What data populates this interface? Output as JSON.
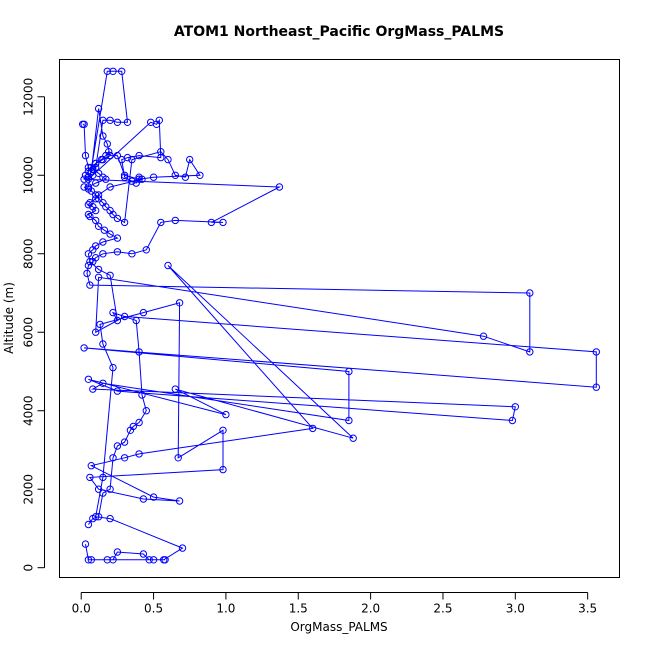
{
  "chart_data": {
    "type": "line",
    "title": "ATOM1 Northeast_Pacific OrgMass_PALMS",
    "xlabel": "OrgMass_PALMS",
    "ylabel": "Altitude (m)",
    "xlim": [
      -0.15,
      3.72
    ],
    "ylim": [
      -250,
      12950
    ],
    "xticks": [
      0.0,
      0.5,
      1.0,
      1.5,
      2.0,
      2.5,
      3.0,
      3.5
    ],
    "xtick_labels": [
      "0.0",
      "0.5",
      "1.0",
      "1.5",
      "2.0",
      "2.5",
      "3.0",
      "3.5"
    ],
    "yticks": [
      0,
      2000,
      4000,
      6000,
      8000,
      10000,
      12000
    ],
    "ytick_labels": [
      "0",
      "2000",
      "4000",
      "6000",
      "8000",
      "10000",
      "12000"
    ],
    "grid": false,
    "series_color": "#0000ff",
    "series": [
      {
        "marker": "open-circle",
        "x": [
          0.02,
          0.05,
          0.07,
          0.1,
          0.12,
          0.15,
          0.17,
          0.2,
          0.22,
          0.25,
          0.3,
          0.35,
          0.55,
          0.6,
          0.65,
          0.72,
          0.75,
          0.82,
          0.5,
          0.4,
          0.3,
          0.25,
          0.2,
          0.15,
          0.1,
          0.07,
          0.05,
          0.03,
          0.02,
          1.37,
          0.9,
          0.98,
          0.65,
          0.55,
          0.45,
          0.35,
          0.25,
          0.15,
          0.1,
          0.08,
          0.05,
          0.04,
          0.06,
          3.1,
          3.1,
          2.78,
          0.12,
          0.1,
          0.3,
          3.56,
          3.56,
          0.02,
          1.85,
          1.85,
          0.15,
          0.08,
          3.0,
          2.98,
          0.25,
          0.05,
          1.0,
          0.65,
          1.88,
          0.6,
          1.6,
          0.4,
          0.3,
          0.07,
          0.5,
          0.68,
          0.43,
          0.12,
          0.06,
          0.98,
          0.98,
          0.67,
          0.68,
          0.43,
          0.13,
          0.15,
          0.22,
          0.15,
          0.1,
          0.2,
          0.7,
          0.57,
          0.47,
          0.43,
          0.25,
          0.22,
          0.18,
          0.58,
          0.5,
          0.07,
          0.05,
          0.03
        ],
        "y": [
          9700,
          9650,
          9600,
          9500,
          9400,
          9300,
          9200,
          9100,
          9000,
          8900,
          8800,
          10400,
          10600,
          10400,
          10000,
          9950,
          10400,
          10000,
          9950,
          9900,
          10000,
          10500,
          10500,
          10400,
          10300,
          10200,
          10100,
          10000,
          9900,
          9700,
          8800,
          8800,
          8850,
          8800,
          8100,
          8000,
          8050,
          8000,
          7900,
          7800,
          7700,
          7500,
          7200,
          7000,
          5500,
          5900,
          7400,
          6000,
          6400,
          5500,
          4600,
          5600,
          5000,
          3750,
          4700,
          4550,
          4100,
          3750,
          4500,
          4800,
          3900,
          4550,
          3300,
          7700,
          3550,
          2900,
          2800,
          2600,
          1800,
          1700,
          1750,
          2000,
          2300,
          2500,
          3500,
          2800,
          6750,
          6500,
          6200,
          5700,
          5100,
          2300,
          1300,
          1250,
          500,
          200,
          200,
          350,
          400,
          200,
          200,
          200,
          200,
          200,
          200,
          600
        ]
      },
      {
        "marker": "open-circle",
        "x": [
          0.01,
          0.02,
          0.03,
          0.05,
          0.07,
          0.12,
          0.15,
          0.18,
          0.2,
          0.19,
          0.17,
          0.14,
          0.1,
          0.08,
          0.12,
          0.15,
          0.17,
          0.1,
          0.05,
          0.18,
          0.22,
          0.28,
          0.32,
          0.25,
          0.2,
          0.15,
          0.1,
          0.08,
          0.05,
          0.05,
          0.48,
          0.52,
          0.54,
          0.55,
          0.4,
          0.32,
          0.28,
          0.3,
          0.35,
          0.38,
          0.4,
          0.42,
          0.2,
          0.12,
          0.1,
          0.06,
          0.05,
          0.08,
          0.1,
          0.05,
          0.06,
          0.1,
          0.12,
          0.16,
          0.2,
          0.25,
          0.15,
          0.1,
          0.08,
          0.05,
          0.06,
          0.12,
          0.2,
          0.25,
          0.22,
          0.38,
          0.4,
          0.42,
          0.45,
          0.4,
          0.36,
          0.34,
          0.3,
          0.25,
          0.22,
          0.2,
          0.15,
          0.12,
          0.08,
          0.05
        ],
        "y": [
          11300,
          11300,
          10500,
          10200,
          10100,
          11700,
          11000,
          10800,
          10500,
          10600,
          10500,
          10400,
          10300,
          10150,
          10050,
          9950,
          9900,
          9800,
          9700,
          12650,
          12650,
          12650,
          11350,
          11350,
          11400,
          11400,
          10200,
          10000,
          9950,
          9900,
          11350,
          11300,
          11400,
          10450,
          10500,
          10450,
          10400,
          9950,
          9850,
          9800,
          9950,
          9900,
          9700,
          9500,
          9400,
          9300,
          9250,
          9200,
          9100,
          9000,
          8950,
          8850,
          8700,
          8600,
          8500,
          8400,
          8300,
          8200,
          8100,
          8000,
          7800,
          7600,
          7450,
          6300,
          6500,
          6300,
          5500,
          4400,
          4000,
          3700,
          3600,
          3500,
          3200,
          3100,
          2800,
          2000,
          1900,
          1300,
          1250,
          1100
        ]
      }
    ]
  }
}
